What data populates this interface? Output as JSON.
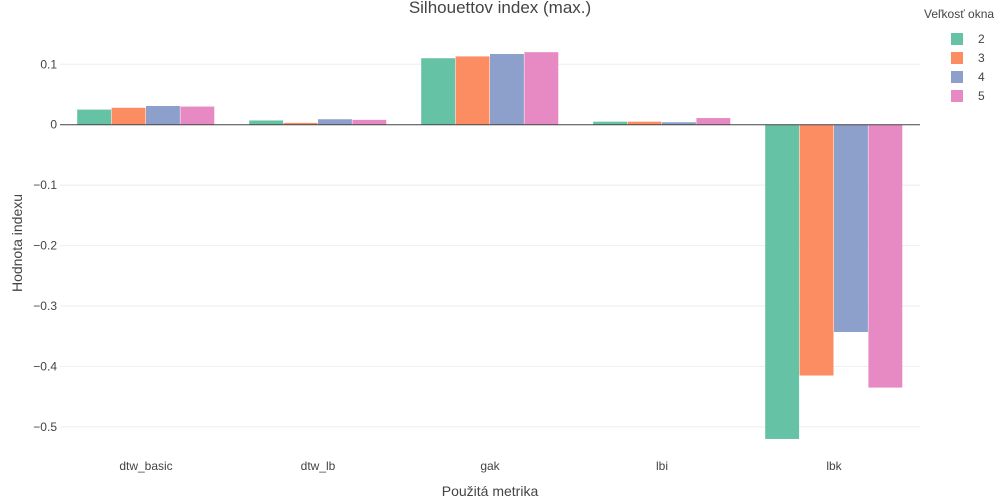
{
  "chart_data": {
    "type": "bar",
    "title": "Silhouettov index (max.)",
    "xlabel": "Použitá metrika",
    "ylabel": "Hodnota indexu",
    "categories": [
      "dtw_basic",
      "dtw_lb",
      "gak",
      "lbi",
      "lbk"
    ],
    "ylim": [
      -0.53,
      0.16
    ],
    "yticks": [
      0.1,
      0,
      -0.1,
      -0.2,
      -0.3,
      -0.4,
      -0.5
    ],
    "ytick_labels": [
      "0.1",
      "0",
      "−0.1",
      "−0.2",
      "−0.3",
      "−0.4",
      "−0.5"
    ],
    "grid": true,
    "legend": {
      "title": "Veľkosť okna",
      "position": "top-right"
    },
    "series": [
      {
        "name": "2",
        "color": "#66c2a5",
        "values": [
          0.025,
          0.007,
          0.11,
          0.005,
          -0.52
        ]
      },
      {
        "name": "3",
        "color": "#fc8d62",
        "values": [
          0.028,
          0.003,
          0.113,
          0.005,
          -0.415
        ]
      },
      {
        "name": "4",
        "color": "#8da0cb",
        "values": [
          0.031,
          0.009,
          0.117,
          0.004,
          -0.343
        ]
      },
      {
        "name": "5",
        "color": "#e78ac3",
        "values": [
          0.03,
          0.008,
          0.12,
          0.011,
          -0.435
        ]
      }
    ]
  }
}
